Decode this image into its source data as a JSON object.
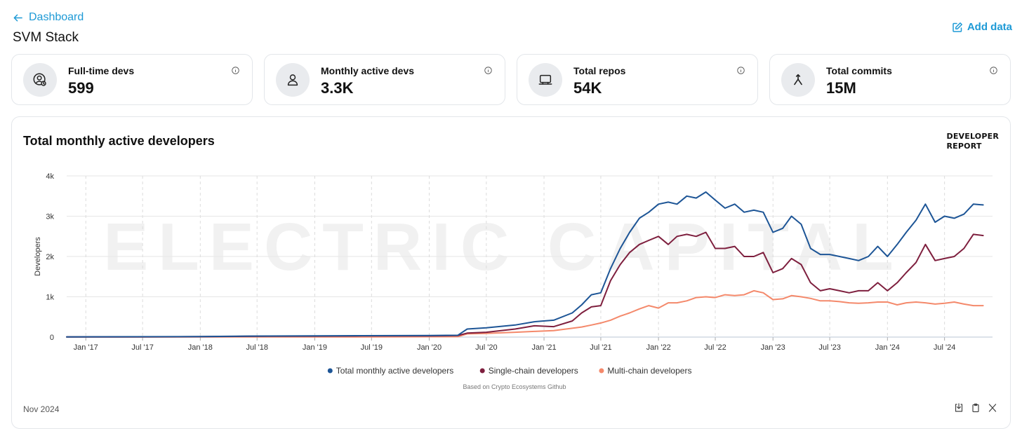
{
  "nav": {
    "back_label": "Dashboard",
    "add_data_label": "Add data"
  },
  "page": {
    "title": "SVM Stack"
  },
  "stats": [
    {
      "label": "Full-time devs",
      "value": "599",
      "icon": "user-clock-icon"
    },
    {
      "label": "Monthly active devs",
      "value": "3.3K",
      "icon": "user-icon"
    },
    {
      "label": "Total repos",
      "value": "54K",
      "icon": "laptop-icon"
    },
    {
      "label": "Total commits",
      "value": "15M",
      "icon": "merge-icon"
    }
  ],
  "chart_card": {
    "title": "Total monthly active developers",
    "brand_line1": "DEVELOPER",
    "brand_line2": "REPORT",
    "watermark": "ELECTRIC CAPITAL",
    "source": "Based on Crypto Ecosystems Github",
    "date": "Nov 2024"
  },
  "chart_data": {
    "type": "line",
    "title": "Total monthly active developers",
    "ylabel": "Developers",
    "xlabel": "",
    "ylim": [
      0,
      4000
    ],
    "y_ticks": [
      0,
      1000,
      2000,
      3000,
      4000
    ],
    "y_tick_labels": [
      "0",
      "1k",
      "2k",
      "3k",
      "4k"
    ],
    "x_range": [
      "2016-11-01",
      "2024-12-01"
    ],
    "x_ticks": [
      "2017-01-01",
      "2017-07-01",
      "2018-01-01",
      "2018-07-01",
      "2019-01-01",
      "2019-07-01",
      "2020-01-01",
      "2020-07-01",
      "2021-01-01",
      "2021-07-01",
      "2022-01-01",
      "2022-07-01",
      "2023-01-01",
      "2023-07-01",
      "2024-01-01",
      "2024-07-01"
    ],
    "x_tick_labels": [
      "Jan '17",
      "Jul '17",
      "Jan '18",
      "Jul '18",
      "Jan '19",
      "Jul '19",
      "Jan '20",
      "Jul '20",
      "Jan '21",
      "Jul '21",
      "Jan '22",
      "Jul '22",
      "Jan '23",
      "Jul '23",
      "Jan '24",
      "Jul '24"
    ],
    "grid": true,
    "legend_position": "bottom",
    "series": [
      {
        "name": "Total monthly active developers",
        "color": "#1d5596",
        "points": [
          [
            "2016-11-01",
            5
          ],
          [
            "2017-06-01",
            8
          ],
          [
            "2018-01-01",
            12
          ],
          [
            "2018-06-01",
            25
          ],
          [
            "2019-01-01",
            30
          ],
          [
            "2019-06-01",
            35
          ],
          [
            "2020-01-01",
            40
          ],
          [
            "2020-04-01",
            45
          ],
          [
            "2020-05-01",
            200
          ],
          [
            "2020-07-01",
            230
          ],
          [
            "2020-10-01",
            300
          ],
          [
            "2020-12-01",
            380
          ],
          [
            "2021-02-01",
            420
          ],
          [
            "2021-04-01",
            600
          ],
          [
            "2021-05-01",
            800
          ],
          [
            "2021-06-01",
            1050
          ],
          [
            "2021-07-01",
            1100
          ],
          [
            "2021-08-01",
            1700
          ],
          [
            "2021-09-01",
            2200
          ],
          [
            "2021-10-01",
            2600
          ],
          [
            "2021-11-01",
            2950
          ],
          [
            "2021-12-01",
            3100
          ],
          [
            "2022-01-01",
            3300
          ],
          [
            "2022-02-01",
            3350
          ],
          [
            "2022-03-01",
            3300
          ],
          [
            "2022-04-01",
            3500
          ],
          [
            "2022-05-01",
            3450
          ],
          [
            "2022-06-01",
            3600
          ],
          [
            "2022-07-01",
            3400
          ],
          [
            "2022-08-01",
            3200
          ],
          [
            "2022-09-01",
            3300
          ],
          [
            "2022-10-01",
            3100
          ],
          [
            "2022-11-01",
            3150
          ],
          [
            "2022-12-01",
            3100
          ],
          [
            "2023-01-01",
            2600
          ],
          [
            "2023-02-01",
            2700
          ],
          [
            "2023-03-01",
            3000
          ],
          [
            "2023-04-01",
            2800
          ],
          [
            "2023-05-01",
            2200
          ],
          [
            "2023-06-01",
            2050
          ],
          [
            "2023-07-01",
            2050
          ],
          [
            "2023-08-01",
            2000
          ],
          [
            "2023-09-01",
            1950
          ],
          [
            "2023-10-01",
            1900
          ],
          [
            "2023-11-01",
            2000
          ],
          [
            "2023-12-01",
            2250
          ],
          [
            "2024-01-01",
            2000
          ],
          [
            "2024-02-01",
            2300
          ],
          [
            "2024-03-01",
            2600
          ],
          [
            "2024-04-01",
            2900
          ],
          [
            "2024-05-01",
            3300
          ],
          [
            "2024-06-01",
            2850
          ],
          [
            "2024-07-01",
            3000
          ],
          [
            "2024-08-01",
            2950
          ],
          [
            "2024-09-01",
            3050
          ],
          [
            "2024-10-01",
            3300
          ],
          [
            "2024-11-01",
            3280
          ]
        ]
      },
      {
        "name": "Single-chain developers",
        "color": "#7e1f3e",
        "points": [
          [
            "2016-11-01",
            4
          ],
          [
            "2017-06-01",
            6
          ],
          [
            "2018-01-01",
            10
          ],
          [
            "2018-06-01",
            20
          ],
          [
            "2019-01-01",
            25
          ],
          [
            "2019-06-01",
            30
          ],
          [
            "2020-01-01",
            32
          ],
          [
            "2020-04-01",
            38
          ],
          [
            "2020-05-01",
            100
          ],
          [
            "2020-07-01",
            120
          ],
          [
            "2020-10-01",
            200
          ],
          [
            "2020-12-01",
            280
          ],
          [
            "2021-02-01",
            260
          ],
          [
            "2021-04-01",
            400
          ],
          [
            "2021-05-01",
            600
          ],
          [
            "2021-06-01",
            750
          ],
          [
            "2021-07-01",
            780
          ],
          [
            "2021-08-01",
            1400
          ],
          [
            "2021-09-01",
            1800
          ],
          [
            "2021-10-01",
            2100
          ],
          [
            "2021-11-01",
            2300
          ],
          [
            "2021-12-01",
            2400
          ],
          [
            "2022-01-01",
            2500
          ],
          [
            "2022-02-01",
            2300
          ],
          [
            "2022-03-01",
            2500
          ],
          [
            "2022-04-01",
            2550
          ],
          [
            "2022-05-01",
            2500
          ],
          [
            "2022-06-01",
            2600
          ],
          [
            "2022-07-01",
            2200
          ],
          [
            "2022-08-01",
            2200
          ],
          [
            "2022-09-01",
            2250
          ],
          [
            "2022-10-01",
            2000
          ],
          [
            "2022-11-01",
            2000
          ],
          [
            "2022-12-01",
            2100
          ],
          [
            "2023-01-01",
            1600
          ],
          [
            "2023-02-01",
            1700
          ],
          [
            "2023-03-01",
            1950
          ],
          [
            "2023-04-01",
            1800
          ],
          [
            "2023-05-01",
            1350
          ],
          [
            "2023-06-01",
            1150
          ],
          [
            "2023-07-01",
            1200
          ],
          [
            "2023-08-01",
            1150
          ],
          [
            "2023-09-01",
            1100
          ],
          [
            "2023-10-01",
            1150
          ],
          [
            "2023-11-01",
            1150
          ],
          [
            "2023-12-01",
            1350
          ],
          [
            "2024-01-01",
            1150
          ],
          [
            "2024-02-01",
            1350
          ],
          [
            "2024-03-01",
            1600
          ],
          [
            "2024-04-01",
            1850
          ],
          [
            "2024-05-01",
            2300
          ],
          [
            "2024-06-01",
            1900
          ],
          [
            "2024-07-01",
            1950
          ],
          [
            "2024-08-01",
            2000
          ],
          [
            "2024-09-01",
            2200
          ],
          [
            "2024-10-01",
            2550
          ],
          [
            "2024-11-01",
            2520
          ]
        ]
      },
      {
        "name": "Multi-chain developers",
        "color": "#f4896b",
        "points": [
          [
            "2016-11-01",
            1
          ],
          [
            "2017-06-01",
            2
          ],
          [
            "2018-01-01",
            3
          ],
          [
            "2018-06-01",
            5
          ],
          [
            "2019-01-01",
            6
          ],
          [
            "2019-06-01",
            6
          ],
          [
            "2020-01-01",
            8
          ],
          [
            "2020-04-01",
            10
          ],
          [
            "2020-05-01",
            80
          ],
          [
            "2020-07-01",
            90
          ],
          [
            "2020-10-01",
            120
          ],
          [
            "2020-12-01",
            140
          ],
          [
            "2021-02-01",
            160
          ],
          [
            "2021-04-01",
            220
          ],
          [
            "2021-05-01",
            250
          ],
          [
            "2021-06-01",
            300
          ],
          [
            "2021-07-01",
            350
          ],
          [
            "2021-08-01",
            420
          ],
          [
            "2021-09-01",
            520
          ],
          [
            "2021-10-01",
            600
          ],
          [
            "2021-11-01",
            700
          ],
          [
            "2021-12-01",
            780
          ],
          [
            "2022-01-01",
            720
          ],
          [
            "2022-02-01",
            850
          ],
          [
            "2022-03-01",
            850
          ],
          [
            "2022-04-01",
            900
          ],
          [
            "2022-05-01",
            980
          ],
          [
            "2022-06-01",
            1000
          ],
          [
            "2022-07-01",
            980
          ],
          [
            "2022-08-01",
            1050
          ],
          [
            "2022-09-01",
            1030
          ],
          [
            "2022-10-01",
            1050
          ],
          [
            "2022-11-01",
            1150
          ],
          [
            "2022-12-01",
            1100
          ],
          [
            "2023-01-01",
            930
          ],
          [
            "2023-02-01",
            950
          ],
          [
            "2023-03-01",
            1030
          ],
          [
            "2023-04-01",
            1000
          ],
          [
            "2023-05-01",
            960
          ],
          [
            "2023-06-01",
            900
          ],
          [
            "2023-07-01",
            900
          ],
          [
            "2023-08-01",
            880
          ],
          [
            "2023-09-01",
            850
          ],
          [
            "2023-10-01",
            840
          ],
          [
            "2023-11-01",
            850
          ],
          [
            "2023-12-01",
            870
          ],
          [
            "2024-01-01",
            870
          ],
          [
            "2024-02-01",
            800
          ],
          [
            "2024-03-01",
            850
          ],
          [
            "2024-04-01",
            870
          ],
          [
            "2024-05-01",
            850
          ],
          [
            "2024-06-01",
            820
          ],
          [
            "2024-07-01",
            840
          ],
          [
            "2024-08-01",
            870
          ],
          [
            "2024-09-01",
            820
          ],
          [
            "2024-10-01",
            780
          ],
          [
            "2024-11-01",
            780
          ]
        ]
      }
    ]
  }
}
